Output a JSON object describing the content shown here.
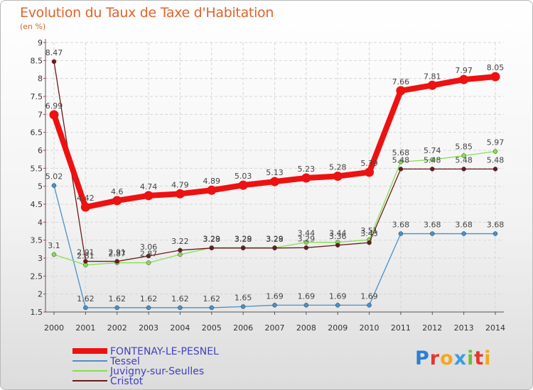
{
  "title": "Evolution du Taux de Taxe d'Habitation",
  "subtitle": "(en %)",
  "logo": {
    "text": "Proxiti",
    "letters": [
      {
        "ch": "P",
        "color": "#2a7fd4"
      },
      {
        "ch": "r",
        "color": "#e5372c"
      },
      {
        "ch": "o",
        "color": "#f2a81d"
      },
      {
        "ch": "x",
        "color": "#3a9ee0"
      },
      {
        "ch": "i",
        "color": "#6cbf3a"
      },
      {
        "ch": "t",
        "color": "#e5372c"
      },
      {
        "ch": "i",
        "color": "#f2a81d"
      }
    ]
  },
  "chart_data": {
    "type": "line",
    "title": "Evolution du Taux de Taxe d'Habitation",
    "ylabel": "(en %)",
    "xlabel": "",
    "x": [
      2000,
      2001,
      2002,
      2003,
      2004,
      2005,
      2006,
      2007,
      2008,
      2009,
      2010,
      2011,
      2012,
      2013,
      2014
    ],
    "ylim": [
      1.5,
      9
    ],
    "yticks": [
      "1.5",
      "2",
      "2.5",
      "3",
      "3.5",
      "4",
      "4.5",
      "5",
      "5.5",
      "6",
      "6.5",
      "7",
      "7.5",
      "8",
      "8.5",
      "9"
    ],
    "grid": true,
    "legend_position": "bottom-left",
    "series": [
      {
        "name": "FONTENAY-LE-PESNEL",
        "color": "#ee1111",
        "values": [
          6.99,
          4.42,
          4.6,
          4.74,
          4.79,
          4.89,
          5.03,
          5.13,
          5.23,
          5.28,
          5.39,
          7.66,
          7.81,
          7.97,
          8.05
        ],
        "labels": [
          "6.99",
          "4.42",
          "4.6",
          "4.74",
          "4.79",
          "4.89",
          "5.03",
          "5.13",
          "5.23",
          "5.28",
          "5.39",
          "7.66",
          "7.81",
          "7.97",
          "8.05"
        ]
      },
      {
        "name": "Tessel",
        "color": "#4a90c8",
        "values": [
          5.02,
          1.62,
          1.62,
          1.62,
          1.62,
          1.62,
          1.65,
          1.69,
          1.69,
          1.69,
          1.69,
          3.68,
          3.68,
          3.68,
          3.68
        ],
        "labels": [
          "5.02",
          "1.62",
          "1.62",
          "1.62",
          "1.62",
          "1.62",
          "1.65",
          "1.69",
          "1.69",
          "1.69",
          "1.69",
          "3.68",
          "3.68",
          "3.68",
          "3.68"
        ]
      },
      {
        "name": "Juvigny-sur-Seulles",
        "color": "#88dd55",
        "values": [
          3.1,
          2.81,
          2.87,
          2.87,
          3.1,
          3.29,
          3.29,
          3.29,
          3.44,
          3.44,
          3.51,
          5.68,
          5.74,
          5.85,
          5.97
        ],
        "labels": [
          "3.1",
          "2.81",
          "2.87",
          "2.87",
          "",
          "3.29",
          "3.29",
          "3.29",
          "3.44",
          "3.44",
          "3.51",
          "5.68",
          "5.74",
          "5.85",
          "5.97"
        ]
      },
      {
        "name": "Cristot",
        "color": "#6b1a1a",
        "values": [
          8.47,
          2.91,
          2.91,
          3.06,
          3.22,
          3.28,
          3.28,
          3.28,
          3.29,
          3.36,
          3.43,
          5.48,
          5.48,
          5.48,
          5.48
        ],
        "labels": [
          "8.47",
          "2.91",
          "2.91",
          "3.06",
          "3.22",
          "3.28",
          "3.28",
          "3.28",
          "3.29",
          "3.36",
          "3.43",
          "5.48",
          "5.48",
          "5.48",
          "5.48"
        ]
      }
    ]
  }
}
